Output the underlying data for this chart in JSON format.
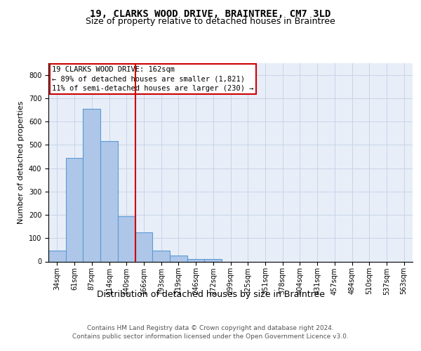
{
  "title": "19, CLARKS WOOD DRIVE, BRAINTREE, CM7 3LD",
  "subtitle": "Size of property relative to detached houses in Braintree",
  "xlabel": "Distribution of detached houses by size in Braintree",
  "ylabel": "Number of detached properties",
  "categories": [
    "34sqm",
    "61sqm",
    "87sqm",
    "114sqm",
    "140sqm",
    "166sqm",
    "193sqm",
    "219sqm",
    "246sqm",
    "272sqm",
    "299sqm",
    "325sqm",
    "351sqm",
    "378sqm",
    "404sqm",
    "431sqm",
    "457sqm",
    "484sqm",
    "510sqm",
    "537sqm",
    "563sqm"
  ],
  "values": [
    47,
    443,
    655,
    515,
    193,
    125,
    48,
    25,
    10,
    10,
    0,
    0,
    0,
    0,
    0,
    0,
    0,
    0,
    0,
    0,
    0
  ],
  "bar_color": "#aec6e8",
  "bar_edge_color": "#5b9bd5",
  "vline_x": 4.5,
  "vline_color": "#cc0000",
  "annotation_lines": [
    "19 CLARKS WOOD DRIVE: 162sqm",
    "← 89% of detached houses are smaller (1,821)",
    "11% of semi-detached houses are larger (230) →"
  ],
  "annotation_box_color": "#cc0000",
  "ylim": [
    0,
    850
  ],
  "yticks": [
    0,
    100,
    200,
    300,
    400,
    500,
    600,
    700,
    800
  ],
  "grid_color": "#c8d4e8",
  "bg_color": "#e8eef8",
  "footer_line1": "Contains HM Land Registry data © Crown copyright and database right 2024.",
  "footer_line2": "Contains public sector information licensed under the Open Government Licence v3.0.",
  "title_fontsize": 10,
  "subtitle_fontsize": 9,
  "xlabel_fontsize": 9,
  "ylabel_fontsize": 8,
  "tick_fontsize": 7,
  "annotation_fontsize": 7.5,
  "footer_fontsize": 6.5
}
